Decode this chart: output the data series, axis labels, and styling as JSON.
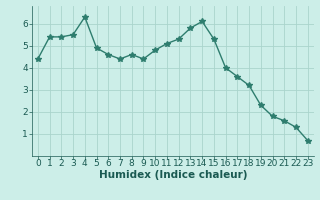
{
  "x": [
    0,
    1,
    2,
    3,
    4,
    5,
    6,
    7,
    8,
    9,
    10,
    11,
    12,
    13,
    14,
    15,
    16,
    17,
    18,
    19,
    20,
    21,
    22,
    23
  ],
  "y": [
    4.4,
    5.4,
    5.4,
    5.5,
    6.3,
    4.9,
    4.6,
    4.4,
    4.6,
    4.4,
    4.8,
    5.1,
    5.3,
    5.8,
    6.1,
    5.3,
    4.0,
    3.6,
    3.2,
    2.3,
    1.8,
    1.6,
    1.3,
    0.7
  ],
  "line_color": "#2e7d6e",
  "marker": "*",
  "marker_size": 4,
  "bg_color": "#cceee8",
  "grid_color": "#aad4cc",
  "xlabel": "Humidex (Indice chaleur)",
  "ylim": [
    0,
    6.8
  ],
  "xlim": [
    -0.5,
    23.5
  ],
  "yticks": [
    1,
    2,
    3,
    4,
    5,
    6
  ],
  "xticks": [
    0,
    1,
    2,
    3,
    4,
    5,
    6,
    7,
    8,
    9,
    10,
    11,
    12,
    13,
    14,
    15,
    16,
    17,
    18,
    19,
    20,
    21,
    22,
    23
  ],
  "tick_fontsize": 6.5,
  "xlabel_fontsize": 7.5,
  "label_color": "#1a5a52",
  "fig_bg_color": "#cceee8"
}
